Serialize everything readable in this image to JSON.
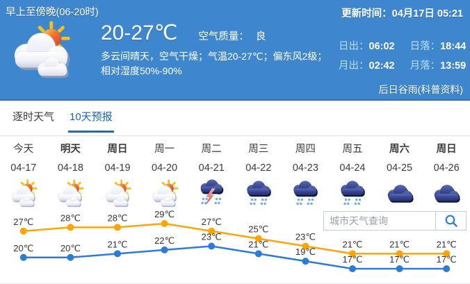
{
  "banner": {
    "period_title": "早上至傍晚(06-20时)",
    "update_time_label": "更新时间：",
    "update_time": "04月17日 05:21",
    "temp_range": "20-27℃",
    "air_quality_label": "空气质量：",
    "air_quality": "良",
    "desc_line1": "多云间晴天，空气干燥；气温20-27℃；偏东风2级；",
    "desc_line2": "相对湿度50%-90%",
    "sun_moon": [
      {
        "label": "日出：",
        "value": "06:02"
      },
      {
        "label": "日落：",
        "value": "18:44"
      },
      {
        "label": "月出：",
        "value": "02:42"
      },
      {
        "label": "月落：",
        "value": "13:59"
      }
    ],
    "solar_term_note": "后日谷雨(科普资料)",
    "bg_color": "#3e87cf",
    "icon": "partly-cloudy"
  },
  "tabs": [
    {
      "label": "逐时天气",
      "active": false
    },
    {
      "label": "10天预报",
      "active": true
    }
  ],
  "search": {
    "placeholder": "城市天气查询",
    "icon": "search-icon",
    "accent_color": "#2a7fd4"
  },
  "forecast": {
    "days": [
      {
        "day": "今天",
        "date": "04-17",
        "icon": "partly-cloudy",
        "emphasis": false
      },
      {
        "day": "明天",
        "date": "04-18",
        "icon": "partly-cloudy",
        "emphasis": true
      },
      {
        "day": "周日",
        "date": "04-19",
        "icon": "partly-cloudy",
        "emphasis": true
      },
      {
        "day": "周一",
        "date": "04-20",
        "icon": "partly-cloudy",
        "emphasis": false
      },
      {
        "day": "周二",
        "date": "04-21",
        "icon": "thunderstorm",
        "emphasis": false
      },
      {
        "day": "周三",
        "date": "04-22",
        "icon": "rain",
        "emphasis": false
      },
      {
        "day": "周四",
        "date": "04-23",
        "icon": "rain",
        "emphasis": false
      },
      {
        "day": "周五",
        "date": "04-24",
        "icon": "rain",
        "emphasis": false
      },
      {
        "day": "周六",
        "date": "04-25",
        "icon": "cloudy",
        "emphasis": true
      },
      {
        "day": "周日",
        "date": "04-26",
        "icon": "cloudy",
        "emphasis": true
      }
    ]
  },
  "chart_data": {
    "type": "line",
    "categories": [
      "04-17",
      "04-18",
      "04-19",
      "04-20",
      "04-21",
      "04-22",
      "04-23",
      "04-24",
      "04-25",
      "04-26"
    ],
    "series": [
      {
        "name": "high",
        "color": "#ffa400",
        "values": [
          27,
          28,
          28,
          29,
          27,
          25,
          23,
          21,
          21,
          21
        ]
      },
      {
        "name": "low",
        "color": "#2c7cd6",
        "values": [
          20,
          20,
          21,
          22,
          23,
          21,
          19,
          17,
          17,
          17
        ]
      }
    ],
    "unit": "℃",
    "label_color": "#333333",
    "ylim": [
      17,
      29
    ],
    "grid": false,
    "legend": "none"
  }
}
